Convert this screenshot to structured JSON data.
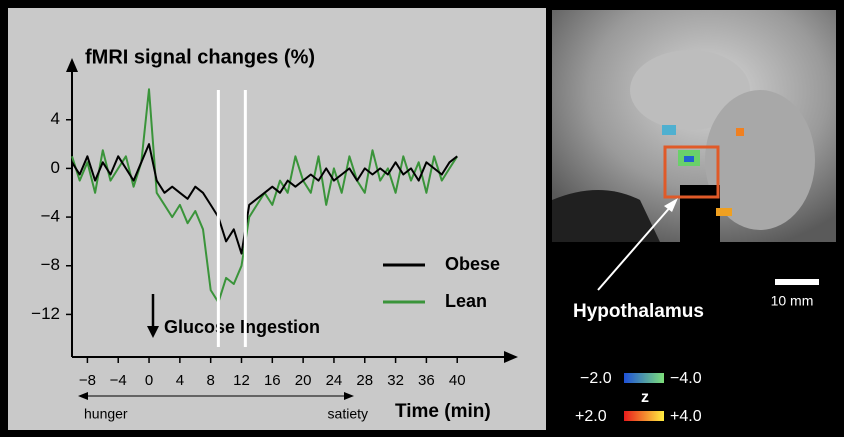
{
  "chart_data": {
    "type": "line",
    "ylabel": "fMRI signal changes (%)",
    "xlabel": "Time (min)",
    "annotation": "Glucose Ingestion",
    "range_left": "hunger",
    "range_right": "satiety",
    "x": [
      -10,
      -9,
      -8,
      -7,
      -6,
      -5,
      -4,
      -3,
      -2,
      -1,
      0,
      1,
      2,
      3,
      4,
      5,
      6,
      7,
      8,
      9,
      10,
      11,
      12,
      13,
      14,
      15,
      16,
      17,
      18,
      19,
      20,
      21,
      22,
      23,
      24,
      25,
      26,
      27,
      28,
      29,
      30,
      31,
      32,
      33,
      34,
      35,
      36,
      37,
      38,
      39,
      40
    ],
    "series": [
      {
        "name": "Obese",
        "color": "#000000",
        "values": [
          0.5,
          -0.5,
          1,
          -1,
          0.5,
          -0.5,
          1,
          0,
          -1,
          0.5,
          2,
          -1,
          -2,
          -1.5,
          -2,
          -2.5,
          -1.5,
          -2,
          -3,
          -4,
          -6,
          -5,
          -7,
          -3,
          -2.5,
          -2,
          -1.5,
          -2,
          -1,
          -1.5,
          -1,
          -0.5,
          -1,
          0,
          -1,
          -0.5,
          0,
          -1,
          0,
          -0.5,
          0,
          -0.5,
          0.5,
          -0.5,
          0,
          -1,
          0.5,
          0,
          -0.5,
          0.5,
          1
        ]
      },
      {
        "name": "Lean",
        "color": "#3a943a",
        "values": [
          1,
          -1,
          0.5,
          -2,
          1.5,
          -1,
          0,
          1,
          -1.5,
          0.5,
          6.5,
          -2,
          -3,
          -4,
          -3,
          -4.5,
          -3.5,
          -5,
          -10,
          -11,
          -9,
          -9.5,
          -8,
          -4,
          -3,
          -2,
          -3,
          -1,
          -2,
          1,
          -1,
          -2,
          1,
          -3,
          0,
          -2,
          1,
          -1,
          -2,
          1.5,
          -1,
          0,
          -2,
          1,
          -1,
          0.5,
          -2,
          1,
          -1,
          0,
          1
        ]
      }
    ],
    "vlines": [
      9,
      12.5
    ],
    "xlim": [
      -10,
      47.5
    ],
    "ylim": [
      -15.5,
      8.5
    ],
    "xticks": [
      {
        "value": -8,
        "label": "−8"
      },
      {
        "value": -4,
        "label": "−4"
      },
      0,
      4,
      8,
      12,
      16,
      20,
      24,
      28,
      32,
      36,
      40
    ],
    "yticks": [
      4,
      0,
      {
        "value": -4,
        "label": "−4"
      },
      {
        "value": -8,
        "label": "−8"
      },
      {
        "value": -12,
        "label": "−12"
      }
    ]
  },
  "image_panel": {
    "label": "Hypothalamus",
    "scale_bar": "10 mm",
    "colorbar": {
      "title": "z",
      "negative_low": "−2.0",
      "negative_high": "−4.0",
      "positive_low": "+2.0",
      "positive_high": "+4.0"
    }
  }
}
